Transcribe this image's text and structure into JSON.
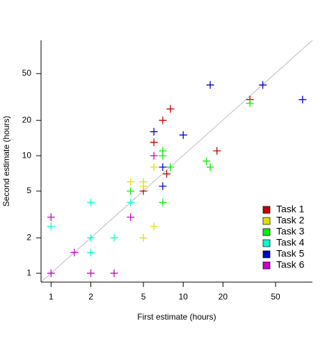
{
  "chart_data": {
    "type": "scatter",
    "xlabel": "First estimate (hours)",
    "ylabel": "Second estimate (hours)",
    "log_x": true,
    "log_y": true,
    "xlim": [
      0.84,
      95
    ],
    "ylim": [
      0.84,
      96
    ],
    "xticks": [
      1,
      2,
      5,
      10,
      20,
      50
    ],
    "yticks": [
      1,
      2,
      5,
      10,
      20,
      50
    ],
    "grid": false,
    "legend": "bottomright",
    "series": [
      {
        "name": "Task 1",
        "color": "#c00000",
        "x": [
          8,
          7,
          6,
          7.5,
          5,
          18,
          32
        ],
        "y": [
          25,
          20,
          13,
          7,
          5,
          11,
          30
        ]
      },
      {
        "name": "Task 2",
        "color": "#e0e000",
        "x": [
          4,
          5,
          5,
          6,
          6,
          5
        ],
        "y": [
          6,
          6,
          5.5,
          8,
          2.5,
          2
        ]
      },
      {
        "name": "Task 3",
        "color": "#00ee00",
        "x": [
          7,
          7,
          8,
          4,
          7,
          15,
          16,
          32
        ],
        "y": [
          11,
          10,
          8,
          5,
          4,
          9,
          8,
          28
        ]
      },
      {
        "name": "Task 4",
        "color": "#00ffcc",
        "x": [
          1,
          2,
          4,
          2,
          2,
          3
        ],
        "y": [
          2.5,
          4,
          4,
          2,
          1.5,
          2
        ]
      },
      {
        "name": "Task 5",
        "color": "#0000cc",
        "x": [
          6,
          10,
          7,
          7,
          16,
          40,
          80
        ],
        "y": [
          16,
          15,
          8,
          5.5,
          40,
          40,
          30
        ]
      },
      {
        "name": "Task 6",
        "color": "#cc00cc",
        "x": [
          6,
          4,
          1,
          1.5,
          1,
          2,
          3
        ],
        "y": [
          10,
          3,
          3,
          1.5,
          1,
          1,
          1
        ]
      }
    ]
  }
}
